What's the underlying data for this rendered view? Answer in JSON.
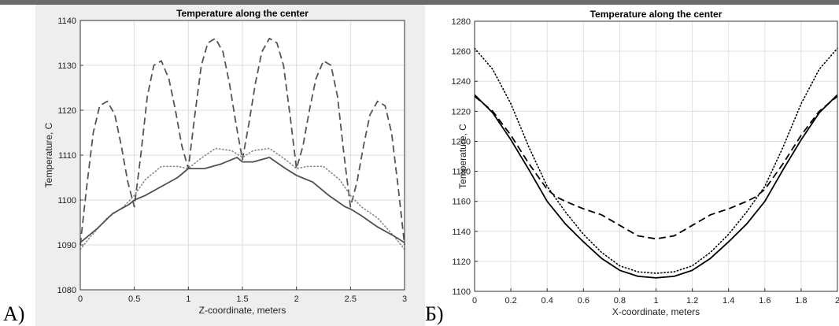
{
  "panel_labels": [
    "A)",
    "Б)"
  ],
  "chart_data": [
    {
      "type": "line",
      "title": "Temperature along the center",
      "xlabel": "Z-coordinate, meters",
      "ylabel": "Temperature, C",
      "xlim": [
        0,
        3
      ],
      "ylim": [
        1080,
        1140
      ],
      "xticks": [
        0,
        0.5,
        1,
        1.5,
        2,
        2.5,
        3
      ],
      "xtick_labels": [
        "0",
        "0.5",
        "1",
        "1.5",
        "2",
        "2.5",
        "3"
      ],
      "yticks": [
        1080,
        1090,
        1100,
        1110,
        1120,
        1130,
        1140
      ],
      "ytick_labels": [
        "1080",
        "1090",
        "1100",
        "1110",
        "1120",
        "1130",
        "1140"
      ],
      "grid": true,
      "series": [
        {
          "style": "dashed",
          "color": "#555555",
          "x": [
            0,
            0.06,
            0.12,
            0.18,
            0.25,
            0.32,
            0.38,
            0.44,
            0.5,
            0.56,
            0.62,
            0.68,
            0.75,
            0.82,
            0.88,
            0.94,
            1.0,
            1.06,
            1.12,
            1.18,
            1.25,
            1.32,
            1.38,
            1.44,
            1.5,
            1.56,
            1.62,
            1.68,
            1.75,
            1.82,
            1.88,
            1.94,
            2.0,
            2.06,
            2.12,
            2.18,
            2.25,
            2.32,
            2.38,
            2.44,
            2.5,
            2.56,
            2.62,
            2.68,
            2.75,
            2.82,
            2.88,
            2.94,
            3.0
          ],
          "y": [
            1090,
            1103,
            1115,
            1121,
            1122,
            1119,
            1112,
            1104,
            1098.5,
            1110,
            1123,
            1130,
            1131,
            1127,
            1120,
            1112,
            1107,
            1119,
            1130,
            1135,
            1136,
            1133,
            1126,
            1117,
            1109,
            1117,
            1126,
            1133,
            1136,
            1135,
            1130,
            1119,
            1107,
            1112,
            1120,
            1127,
            1131,
            1130,
            1123,
            1110,
            1098.5,
            1104,
            1112,
            1119,
            1122,
            1121,
            1115,
            1103,
            1090
          ]
        },
        {
          "style": "dotted",
          "color": "#888888",
          "x": [
            0,
            0.1,
            0.25,
            0.4,
            0.5,
            0.6,
            0.75,
            0.9,
            1.0,
            1.1,
            1.25,
            1.4,
            1.5,
            1.6,
            1.75,
            1.9,
            2.0,
            2.1,
            2.25,
            2.4,
            2.5,
            2.6,
            2.75,
            2.9,
            3.0
          ],
          "y": [
            1089,
            1092,
            1096,
            1098.5,
            1101,
            1104.5,
            1107.5,
            1107.5,
            1107,
            1109,
            1111.5,
            1111,
            1109.5,
            1111,
            1111.5,
            1109,
            1107,
            1107.5,
            1107.5,
            1104.5,
            1101,
            1098.5,
            1096,
            1092,
            1089
          ]
        },
        {
          "style": "solid",
          "color": "#505050",
          "x": [
            0,
            0.15,
            0.3,
            0.45,
            0.5,
            0.6,
            0.75,
            0.9,
            1.0,
            1.15,
            1.3,
            1.45,
            1.5,
            1.6,
            1.75,
            1.9,
            2.0,
            2.15,
            2.3,
            2.45,
            2.5,
            2.6,
            2.75,
            2.9,
            3.0
          ],
          "y": [
            1090.5,
            1093.5,
            1097,
            1099,
            1100,
            1101,
            1103,
            1105,
            1107,
            1107,
            1108,
            1109.5,
            1108.5,
            1108.5,
            1109.5,
            1107,
            1105.5,
            1104,
            1101,
            1098.5,
            1098,
            1096.5,
            1094,
            1092,
            1090.5
          ]
        }
      ]
    },
    {
      "type": "line",
      "title": "Temperature along the center",
      "xlabel": "X-coordinate, meters",
      "ylabel": "Temperature, C",
      "xlim": [
        0,
        2
      ],
      "ylim": [
        1100,
        1280
      ],
      "xticks": [
        0,
        0.2,
        0.4,
        0.6,
        0.8,
        1,
        1.2,
        1.4,
        1.6,
        1.8,
        2
      ],
      "xtick_labels": [
        "0",
        "0.2",
        "0.4",
        "0.6",
        "0.8",
        "1",
        "1.2",
        "1.4",
        "1.6",
        "1.8",
        "2"
      ],
      "yticks": [
        1100,
        1120,
        1140,
        1160,
        1180,
        1200,
        1220,
        1240,
        1260,
        1280
      ],
      "ytick_labels": [
        "1100",
        "1120",
        "1140",
        "1160",
        "1180",
        "1200",
        "1220",
        "1240",
        "1260",
        "1280"
      ],
      "grid": true,
      "series": [
        {
          "style": "dotted",
          "color": "#000000",
          "x": [
            0,
            0.1,
            0.2,
            0.3,
            0.4,
            0.5,
            0.6,
            0.7,
            0.8,
            0.9,
            1.0,
            1.1,
            1.2,
            1.3,
            1.4,
            1.5,
            1.6,
            1.7,
            1.8,
            1.9,
            2.0
          ],
          "y": [
            1262,
            1248,
            1225,
            1196,
            1170,
            1153,
            1138,
            1126,
            1117,
            1113,
            1112,
            1113,
            1117,
            1126,
            1138,
            1153,
            1170,
            1196,
            1225,
            1248,
            1262
          ]
        },
        {
          "style": "dashed",
          "color": "#000000",
          "x": [
            0,
            0.1,
            0.2,
            0.3,
            0.4,
            0.45,
            0.5,
            0.6,
            0.7,
            0.8,
            0.9,
            1.0,
            1.1,
            1.2,
            1.3,
            1.4,
            1.5,
            1.55,
            1.6,
            1.7,
            1.8,
            1.9,
            2.0
          ],
          "y": [
            1230,
            1220,
            1204,
            1185,
            1168,
            1163,
            1160,
            1155,
            1151,
            1144,
            1137,
            1135,
            1137,
            1144,
            1151,
            1155,
            1160,
            1163,
            1168,
            1185,
            1204,
            1220,
            1230
          ]
        },
        {
          "style": "solid",
          "color": "#000000",
          "x": [
            0,
            0.1,
            0.2,
            0.3,
            0.4,
            0.5,
            0.6,
            0.7,
            0.8,
            0.9,
            1.0,
            1.1,
            1.2,
            1.3,
            1.4,
            1.5,
            1.6,
            1.7,
            1.8,
            1.9,
            2.0
          ],
          "y": [
            1231,
            1219,
            1201,
            1181,
            1160,
            1145,
            1133,
            1122,
            1114,
            1110,
            1109,
            1110,
            1114,
            1122,
            1133,
            1145,
            1160,
            1181,
            1201,
            1219,
            1231
          ]
        }
      ]
    }
  ]
}
